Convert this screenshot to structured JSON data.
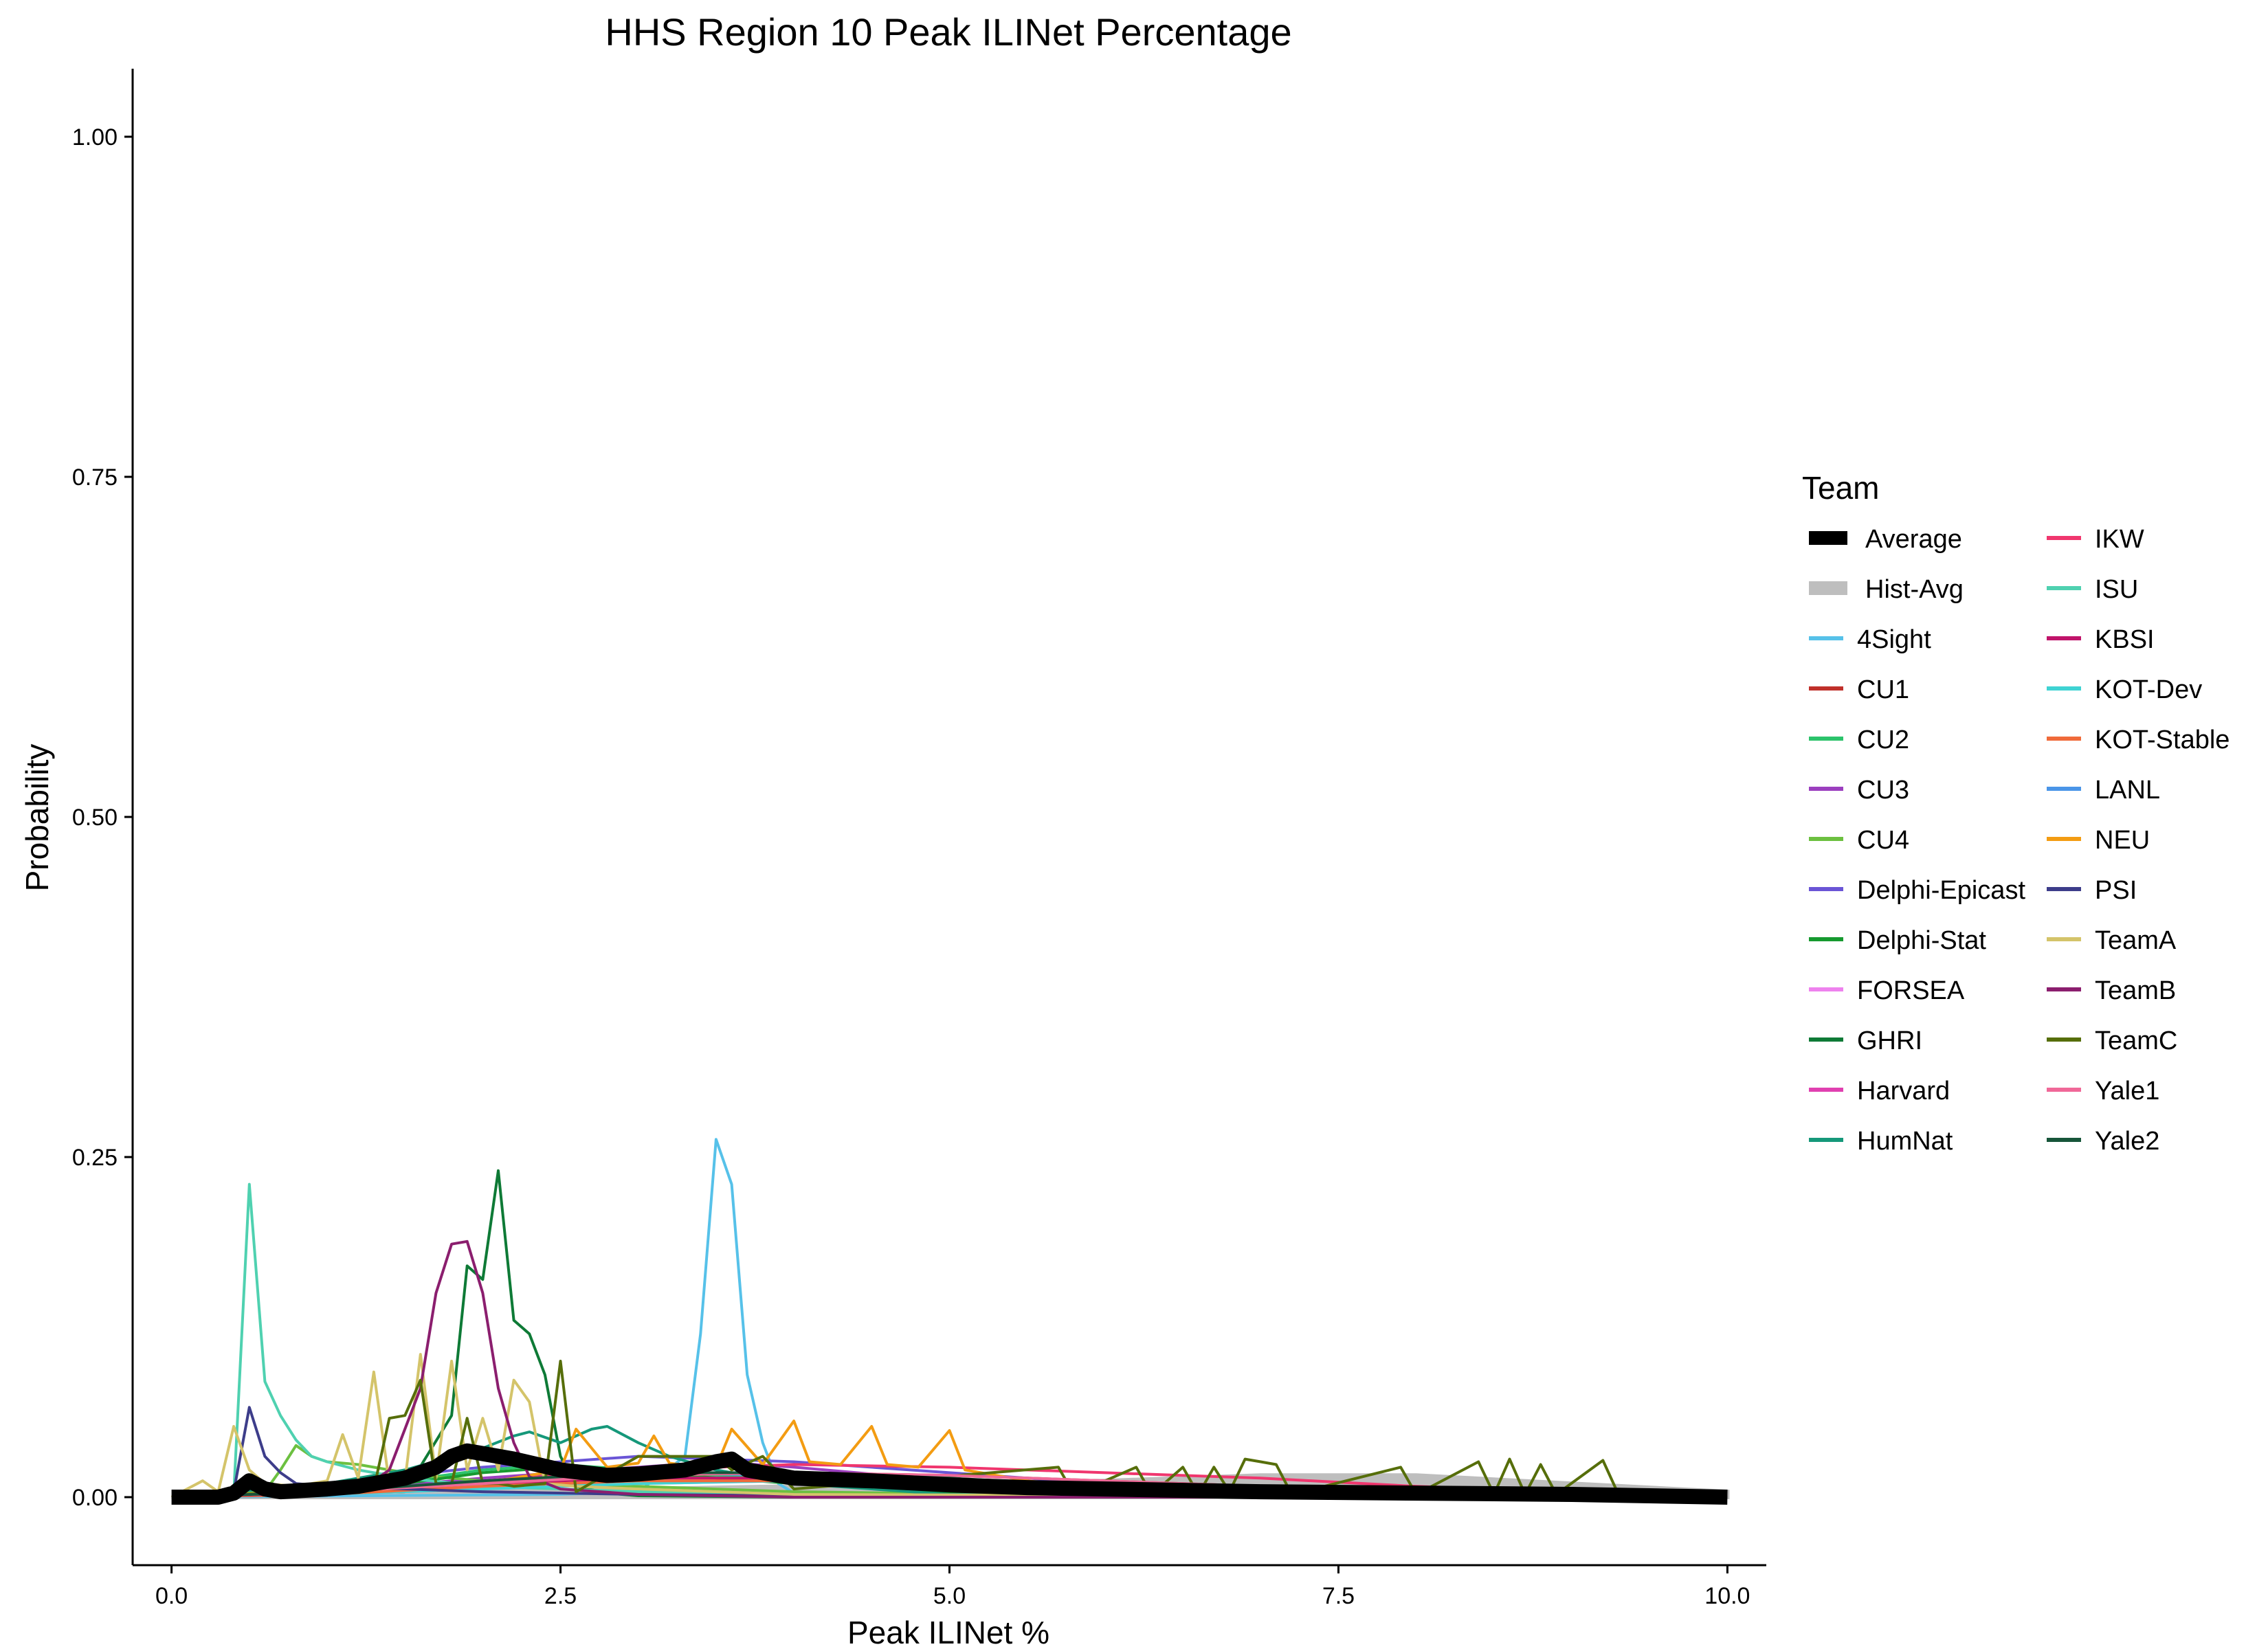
{
  "chart_data": {
    "type": "line",
    "title": "HHS Region 10 Peak ILINet Percentage",
    "xlabel": "Peak ILINet %",
    "ylabel": "Probability",
    "xlim": [
      -0.25,
      10.25
    ],
    "ylim": [
      -0.05,
      1.05
    ],
    "x_ticks": [
      0.0,
      2.5,
      5.0,
      7.5,
      10.0
    ],
    "x_tick_labels": [
      "0.0",
      "2.5",
      "5.0",
      "7.5",
      "10.0"
    ],
    "y_ticks": [
      0.0,
      0.25,
      0.5,
      0.75,
      1.0
    ],
    "y_tick_labels": [
      "0.00",
      "0.25",
      "0.50",
      "0.75",
      "1.00"
    ],
    "grid": false,
    "legend": {
      "title": "Team",
      "position": "right",
      "columns": 2
    },
    "series": [
      {
        "name": "Average",
        "color": "#000000",
        "width": "thick",
        "x": [
          0,
          0.3,
          0.4,
          0.5,
          0.6,
          0.7,
          1.0,
          1.2,
          1.5,
          1.7,
          1.8,
          1.9,
          2.0,
          2.2,
          2.5,
          2.8,
          3.0,
          3.3,
          3.5,
          3.6,
          3.7,
          4.0,
          4.5,
          5.0,
          5.5,
          6.0,
          7.0,
          8.0,
          9.0,
          10.0
        ],
        "y": [
          0,
          0,
          0.003,
          0.012,
          0.006,
          0.004,
          0.006,
          0.008,
          0.014,
          0.022,
          0.03,
          0.034,
          0.032,
          0.028,
          0.02,
          0.016,
          0.017,
          0.02,
          0.026,
          0.028,
          0.02,
          0.014,
          0.012,
          0.009,
          0.007,
          0.006,
          0.004,
          0.003,
          0.002,
          0.0
        ]
      },
      {
        "name": "Hist-Avg",
        "color": "#bebebe",
        "width": "thick",
        "x": [
          0,
          1,
          2,
          3,
          4,
          5,
          6,
          7,
          8,
          9,
          10
        ],
        "y": [
          0,
          0.002,
          0.004,
          0.006,
          0.008,
          0.01,
          0.012,
          0.016,
          0.016,
          0.01,
          0.004
        ]
      },
      {
        "name": "4Sight",
        "color": "#56c1e9",
        "x": [
          0,
          2.5,
          3.0,
          3.3,
          3.4,
          3.5,
          3.6,
          3.7,
          3.8,
          3.9,
          4.0,
          5.0,
          7.0,
          10.0
        ],
        "y": [
          0,
          0.002,
          0.004,
          0.03,
          0.12,
          0.263,
          0.23,
          0.09,
          0.04,
          0.01,
          0.003,
          0.001,
          0,
          0
        ]
      },
      {
        "name": "CU1",
        "color": "#c0302b",
        "x": [
          0,
          1,
          2,
          3,
          4,
          5,
          6,
          7,
          8,
          9,
          10
        ],
        "y": [
          0,
          0.004,
          0.01,
          0.016,
          0.018,
          0.016,
          0.012,
          0.008,
          0.005,
          0.003,
          0.001
        ]
      },
      {
        "name": "CU2",
        "color": "#2cc36b",
        "x": [
          0,
          1,
          1.5,
          2,
          2.5,
          3,
          4,
          5,
          6,
          8,
          10
        ],
        "y": [
          0,
          0.006,
          0.012,
          0.02,
          0.024,
          0.02,
          0.012,
          0.006,
          0.003,
          0.001,
          0
        ]
      },
      {
        "name": "CU3",
        "color": "#9b3fbf",
        "x": [
          0,
          1,
          2,
          3,
          3.5,
          4,
          5,
          6,
          8,
          10
        ],
        "y": [
          0,
          0.004,
          0.014,
          0.022,
          0.026,
          0.022,
          0.012,
          0.006,
          0.002,
          0
        ]
      },
      {
        "name": "CU4",
        "color": "#6cc040",
        "x": [
          0,
          0.6,
          0.7,
          0.8,
          0.9,
          1.0,
          1.2,
          1.4,
          1.6,
          2.0,
          3.0,
          4.0,
          6.0,
          10.0
        ],
        "y": [
          0,
          0.004,
          0.02,
          0.038,
          0.03,
          0.026,
          0.024,
          0.02,
          0.016,
          0.012,
          0.008,
          0.004,
          0.001,
          0
        ]
      },
      {
        "name": "Delphi-Epicast",
        "color": "#6a55d6",
        "x": [
          0,
          1,
          2,
          3,
          4,
          5,
          6,
          8,
          10
        ],
        "y": [
          0,
          0.01,
          0.022,
          0.03,
          0.026,
          0.018,
          0.01,
          0.004,
          0.001
        ]
      },
      {
        "name": "Delphi-Stat",
        "color": "#169a2f",
        "x": [
          0,
          1,
          1.5,
          2,
          2.5,
          3,
          3.5,
          4,
          5,
          6,
          10
        ],
        "y": [
          0,
          0.004,
          0.01,
          0.018,
          0.022,
          0.02,
          0.014,
          0.01,
          0.004,
          0.002,
          0
        ]
      },
      {
        "name": "FORSEA",
        "color": "#ee82ee",
        "x": [
          0,
          1,
          2,
          3,
          4,
          5,
          6,
          7,
          8,
          10
        ],
        "y": [
          0,
          0.002,
          0.006,
          0.01,
          0.012,
          0.01,
          0.008,
          0.005,
          0.003,
          0
        ]
      },
      {
        "name": "GHRI",
        "color": "#0e7a36",
        "x": [
          0,
          1.5,
          1.8,
          1.9,
          2.0,
          2.1,
          2.2,
          2.3,
          2.4,
          2.5,
          2.6,
          2.8,
          3.0,
          4.0,
          10.0
        ],
        "y": [
          0,
          0.004,
          0.06,
          0.17,
          0.16,
          0.24,
          0.13,
          0.12,
          0.09,
          0.03,
          0.008,
          0.003,
          0.001,
          0,
          0
        ]
      },
      {
        "name": "Harvard",
        "color": "#e040b0",
        "x": [
          0,
          1,
          2,
          3,
          4,
          5,
          6,
          7,
          8,
          10
        ],
        "y": [
          0,
          0.004,
          0.01,
          0.014,
          0.014,
          0.012,
          0.01,
          0.008,
          0.005,
          0.001
        ]
      },
      {
        "name": "HumNat",
        "color": "#15987a",
        "x": [
          0,
          1,
          1.5,
          2.0,
          2.2,
          2.3,
          2.5,
          2.7,
          2.8,
          3.0,
          3.2,
          3.5,
          4.0,
          5.0,
          10.0
        ],
        "y": [
          0,
          0.01,
          0.02,
          0.036,
          0.045,
          0.048,
          0.04,
          0.05,
          0.052,
          0.04,
          0.03,
          0.02,
          0.01,
          0.002,
          0
        ]
      },
      {
        "name": "IKW",
        "color": "#f0366e",
        "x": [
          0,
          1,
          2,
          3,
          4,
          5,
          6,
          7,
          8,
          9,
          10
        ],
        "y": [
          0,
          0.004,
          0.012,
          0.02,
          0.024,
          0.022,
          0.018,
          0.014,
          0.008,
          0.004,
          0.001
        ]
      },
      {
        "name": "ISU",
        "color": "#4fd1b0",
        "x": [
          0,
          0.4,
          0.5,
          0.6,
          0.7,
          0.8,
          0.9,
          1.0,
          1.2,
          1.5,
          2.0,
          3.0,
          4.0,
          10.0
        ],
        "y": [
          0,
          0.002,
          0.23,
          0.085,
          0.06,
          0.042,
          0.03,
          0.026,
          0.02,
          0.014,
          0.008,
          0.004,
          0.001,
          0
        ]
      },
      {
        "name": "KBSI",
        "color": "#c0146a",
        "x": [
          0,
          1,
          2,
          3,
          4,
          5,
          6,
          8,
          10
        ],
        "y": [
          0,
          0.004,
          0.01,
          0.014,
          0.014,
          0.01,
          0.006,
          0.002,
          0
        ]
      },
      {
        "name": "KOT-Dev",
        "color": "#3fd3d3",
        "x": [
          0,
          1,
          2,
          3,
          4,
          5,
          6,
          8,
          10
        ],
        "y": [
          0,
          0.002,
          0.006,
          0.01,
          0.012,
          0.01,
          0.006,
          0.002,
          0
        ]
      },
      {
        "name": "KOT-Stable",
        "color": "#f06a3a",
        "x": [
          0,
          1,
          2,
          3,
          4,
          5,
          6,
          8,
          10
        ],
        "y": [
          0,
          0.002,
          0.008,
          0.012,
          0.012,
          0.01,
          0.006,
          0.002,
          0
        ]
      },
      {
        "name": "LANL",
        "color": "#4a95e8",
        "x": [
          0,
          1,
          2,
          3,
          4,
          5,
          6,
          8,
          10
        ],
        "y": [
          0,
          0.004,
          0.012,
          0.018,
          0.016,
          0.01,
          0.006,
          0.002,
          0
        ]
      },
      {
        "name": "NEU",
        "color": "#f39c12",
        "x": [
          0,
          2.0,
          2.5,
          2.6,
          2.8,
          3.0,
          3.1,
          3.2,
          3.4,
          3.5,
          3.6,
          3.8,
          4.0,
          4.1,
          4.3,
          4.5,
          4.6,
          4.8,
          5.0,
          5.1,
          5.5,
          6.0,
          10.0
        ],
        "y": [
          0,
          0.01,
          0.02,
          0.05,
          0.022,
          0.025,
          0.045,
          0.025,
          0.022,
          0.022,
          0.05,
          0.024,
          0.056,
          0.026,
          0.024,
          0.052,
          0.024,
          0.022,
          0.049,
          0.02,
          0.012,
          0.006,
          0
        ]
      },
      {
        "name": "PSI",
        "color": "#3d3d8a",
        "x": [
          0,
          0.4,
          0.5,
          0.6,
          0.7,
          0.8,
          1.0,
          1.5,
          2.0,
          3.0,
          4.0,
          10.0
        ],
        "y": [
          0,
          0.004,
          0.066,
          0.03,
          0.018,
          0.01,
          0.008,
          0.006,
          0.004,
          0.002,
          0.001,
          0
        ]
      },
      {
        "name": "TeamA",
        "color": "#d4c46a",
        "x": [
          0,
          0.2,
          0.3,
          0.4,
          0.5,
          0.6,
          0.8,
          1.0,
          1.1,
          1.2,
          1.3,
          1.4,
          1.5,
          1.6,
          1.7,
          1.8,
          1.9,
          2.0,
          2.1,
          2.2,
          2.3,
          2.4,
          2.6,
          3.0,
          3.5,
          4.0,
          10.0
        ],
        "y": [
          0,
          0.012,
          0.004,
          0.052,
          0.02,
          0.01,
          0.008,
          0.012,
          0.046,
          0.014,
          0.092,
          0.01,
          0.012,
          0.105,
          0.014,
          0.1,
          0.02,
          0.058,
          0.02,
          0.086,
          0.07,
          0.01,
          0.008,
          0.006,
          0.004,
          0.002,
          0
        ]
      },
      {
        "name": "TeamB",
        "color": "#8b1e6e",
        "x": [
          0,
          1.2,
          1.4,
          1.6,
          1.7,
          1.8,
          1.9,
          2.0,
          2.1,
          2.2,
          2.3,
          2.5,
          3.0,
          4.0,
          10.0
        ],
        "y": [
          0,
          0.004,
          0.02,
          0.08,
          0.15,
          0.186,
          0.188,
          0.15,
          0.08,
          0.04,
          0.015,
          0.006,
          0.002,
          0,
          0
        ]
      },
      {
        "name": "TeamC",
        "color": "#566e0a",
        "x": [
          0,
          1.3,
          1.4,
          1.5,
          1.6,
          1.7,
          1.8,
          1.9,
          2.0,
          2.1,
          2.2,
          2.4,
          2.5,
          2.6,
          3.0,
          3.5,
          3.6,
          3.8,
          4.0,
          5.7,
          5.8,
          6.2,
          6.3,
          6.5,
          6.6,
          6.7,
          6.8,
          6.9,
          7.0,
          7.1,
          7.2,
          7.9,
          8.0,
          8.4,
          8.5,
          8.6,
          8.7,
          8.8,
          8.9,
          9.2,
          9.3,
          10.0
        ],
        "y": [
          0,
          0.006,
          0.058,
          0.06,
          0.086,
          0.01,
          0.01,
          0.058,
          0.01,
          0.01,
          0.008,
          0.01,
          0.1,
          0.004,
          0.03,
          0.03,
          0.02,
          0.03,
          0.006,
          0.022,
          0.002,
          0.022,
          0.002,
          0.022,
          0.002,
          0.022,
          0.004,
          0.028,
          0.026,
          0.024,
          0.002,
          0.022,
          0.002,
          0.026,
          0.002,
          0.028,
          0.002,
          0.024,
          0.002,
          0.027,
          0.002,
          0
        ]
      },
      {
        "name": "Yale1",
        "color": "#f06898",
        "x": [
          0,
          1,
          2,
          3,
          4,
          5,
          6,
          7,
          8,
          10
        ],
        "y": [
          0,
          0.004,
          0.01,
          0.016,
          0.018,
          0.016,
          0.012,
          0.008,
          0.004,
          0
        ]
      },
      {
        "name": "Yale2",
        "color": "#17553a",
        "x": [
          0,
          1,
          2,
          3,
          4,
          5,
          6,
          8,
          10
        ],
        "y": [
          0,
          0.004,
          0.012,
          0.018,
          0.018,
          0.014,
          0.008,
          0.003,
          0
        ]
      }
    ]
  }
}
